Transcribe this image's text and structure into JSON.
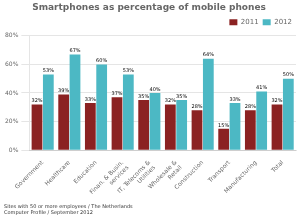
{
  "chart_data": {
    "type": "bar",
    "title": "Smartphones as percentage of mobile phones",
    "categories": [
      "Government",
      "Healthcare",
      "Education",
      "Finan. & Busin.\nservices",
      "IT, Telecoms &\nUtilities",
      "Wholesale &\nRetail",
      "Construction",
      "Transport",
      "Manufacturing",
      "Total"
    ],
    "series": [
      {
        "name": "2011",
        "color": "#8B2222",
        "values": [
          32,
          39,
          33,
          37,
          35,
          32,
          28,
          15,
          28,
          32
        ],
        "value_labels": [
          "32%",
          "39%",
          "33%",
          "37%",
          "35%",
          "32%",
          "28%",
          "15%",
          "28%",
          "32%"
        ]
      },
      {
        "name": "2012",
        "color": "#4CB8C4",
        "values": [
          53,
          67,
          60,
          53,
          40,
          35,
          64,
          33,
          41,
          50
        ],
        "value_labels": [
          "53%",
          "67%",
          "60%",
          "53%",
          "40%",
          "35%",
          "64%",
          "33%",
          "41%",
          "50%"
        ]
      }
    ],
    "ylim": [
      0,
      80
    ],
    "yticks": [
      {
        "value": 0,
        "label": "0%"
      },
      {
        "value": 20,
        "label": "20%"
      },
      {
        "value": 40,
        "label": "40%"
      },
      {
        "value": 60,
        "label": "60%"
      },
      {
        "value": 80,
        "label": "80%"
      }
    ],
    "grid": true,
    "legend": "upper right",
    "data_labels": true,
    "annotations": [
      "Sites with 50 or more employees / The Netherlands\nComputer Profile / September 2012"
    ]
  }
}
